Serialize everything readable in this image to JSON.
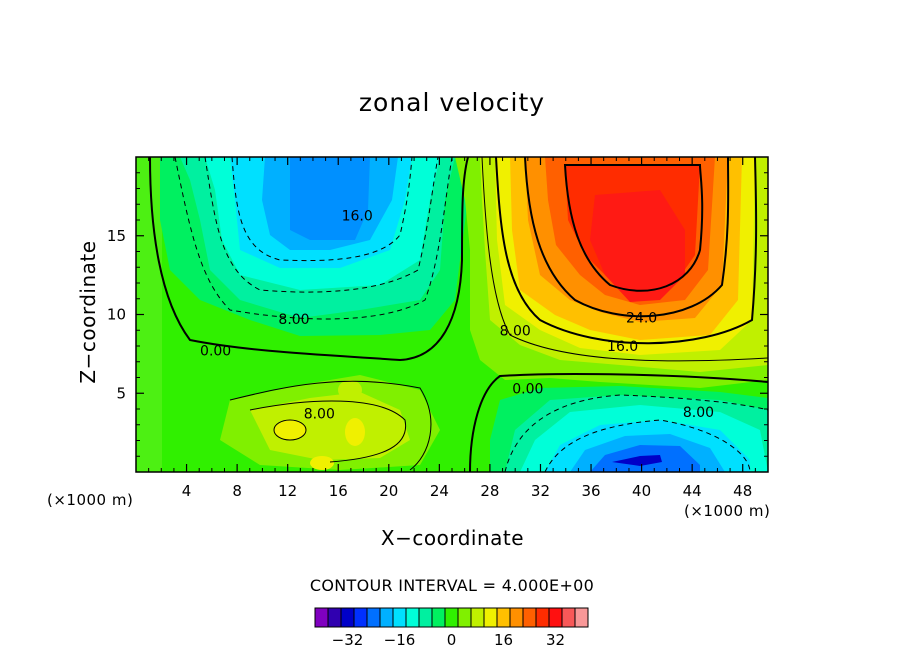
{
  "chart_data": {
    "type": "heatmap",
    "title": "zonal velocity",
    "xlabel": "X−coordinate",
    "ylabel": "Z−coordinate",
    "x_unit": "(×1000 m)",
    "xlim": [
      0,
      50
    ],
    "ylim": [
      0,
      20
    ],
    "x_ticks": [
      4,
      8,
      12,
      16,
      20,
      24,
      28,
      32,
      36,
      40,
      44,
      48
    ],
    "y_ticks": [
      5,
      10,
      15
    ],
    "contour_interval_text": "CONTOUR INTERVAL = 4.000E+00",
    "contour_labels": [
      {
        "text": "16.0",
        "x": 17.5,
        "y": 16.3
      },
      {
        "text": "8.00",
        "x": 12.5,
        "y": 9.7
      },
      {
        "text": "0.00",
        "x": 6.3,
        "y": 7.7
      },
      {
        "text": "8.00",
        "x": 30.0,
        "y": 9.0
      },
      {
        "text": "24.0",
        "x": 40.0,
        "y": 9.8
      },
      {
        "text": "16.0",
        "x": 38.5,
        "y": 8.0
      },
      {
        "text": "0.00",
        "x": 31.0,
        "y": 5.3
      },
      {
        "text": "8.00",
        "x": 14.5,
        "y": 3.7
      },
      {
        "text": "8.00",
        "x": 44.5,
        "y": 3.8
      }
    ],
    "features": [
      {
        "kind": "min",
        "x": 16,
        "y": 16,
        "value": -16
      },
      {
        "kind": "max",
        "x": 40,
        "y": 14.5,
        "value": 27
      },
      {
        "kind": "min",
        "x": 40,
        "y": 1.2,
        "value": -22
      },
      {
        "kind": "max",
        "x": 12,
        "y": 2.5,
        "value": 11
      }
    ],
    "colorbar": {
      "tick_labels": [
        "−32",
        "−16",
        "0",
        "16",
        "32"
      ],
      "colors": [
        "#8000c0",
        "#3000b0",
        "#0000c8",
        "#0030ff",
        "#0070ff",
        "#00b0ff",
        "#00e0ff",
        "#00ffd8",
        "#00f0a0",
        "#00f060",
        "#30f000",
        "#80f000",
        "#c0f000",
        "#f0f000",
        "#ffc000",
        "#ff9000",
        "#ff6000",
        "#ff2c00",
        "#ff1010",
        "#f85858",
        "#f89898"
      ]
    }
  }
}
